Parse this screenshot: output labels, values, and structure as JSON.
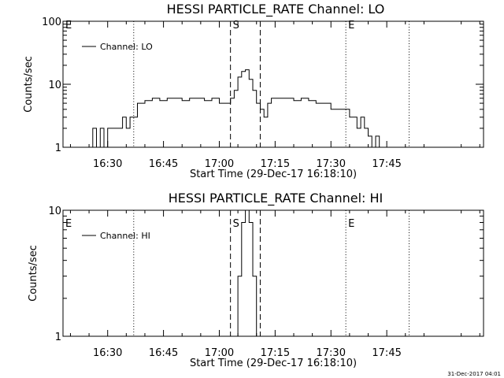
{
  "chart_data": [
    {
      "type": "line",
      "title": "HESSI PARTICLE_RATE Channel: LO",
      "xlabel": "Start Time (29-Dec-17 16:18:10)",
      "ylabel": "Counts/sec",
      "yscale": "log",
      "ylim": [
        1,
        100
      ],
      "ytick_labels": [
        "1",
        "10",
        "100"
      ],
      "xlim_minutes": [
        978,
        1091
      ],
      "xtick_labels": [
        "16:30",
        "16:45",
        "17:00",
        "17:15",
        "17:30",
        "17:45"
      ],
      "legend": {
        "placement": "top-left",
        "entries": [
          "Channel: LO"
        ]
      },
      "markers": [
        {
          "label": "E",
          "time": "16:18",
          "style": "dotted"
        },
        {
          "label": "",
          "time": "16:37",
          "style": "dotted"
        },
        {
          "label": "S",
          "time": "17:03",
          "style": "dashed"
        },
        {
          "label": "",
          "time": "17:11",
          "style": "dashed"
        },
        {
          "label": "E",
          "time": "17:34",
          "style": "dotted"
        },
        {
          "label": "",
          "time": "17:51",
          "style": "dotted"
        }
      ],
      "series": [
        {
          "name": "Channel: LO",
          "x": [
            "16:25",
            "16:26",
            "16:27",
            "16:28",
            "16:29",
            "16:30",
            "16:31",
            "16:32",
            "16:33",
            "16:34",
            "16:35",
            "16:36",
            "16:37",
            "16:38",
            "16:40",
            "16:42",
            "16:44",
            "16:46",
            "16:48",
            "16:50",
            "16:52",
            "16:54",
            "16:56",
            "16:58",
            "17:00",
            "17:02",
            "17:03",
            "17:04",
            "17:05",
            "17:06",
            "17:07",
            "17:08",
            "17:09",
            "17:10",
            "17:11",
            "17:12",
            "17:13",
            "17:14",
            "17:16",
            "17:18",
            "17:20",
            "17:22",
            "17:24",
            "17:26",
            "17:28",
            "17:30",
            "17:32",
            "17:34",
            "17:35",
            "17:36",
            "17:37",
            "17:38",
            "17:39",
            "17:40",
            "17:41",
            "17:42",
            "17:43",
            "17:44",
            "17:45",
            "17:46",
            "17:47",
            "17:48"
          ],
          "values": [
            1,
            2,
            1,
            2,
            1,
            2,
            2,
            2,
            2,
            3,
            2,
            3,
            3,
            5,
            5.5,
            6,
            5.5,
            6,
            6,
            5.5,
            6,
            6,
            5.5,
            6,
            5,
            5,
            6,
            8,
            13,
            16,
            17,
            12,
            8,
            5,
            4,
            3,
            5,
            6,
            6,
            6,
            5.5,
            6,
            5.5,
            5,
            5,
            4,
            4,
            4,
            3,
            3,
            2,
            3,
            2,
            1.5,
            1,
            1.5,
            1,
            1,
            1,
            1,
            1,
            1
          ]
        }
      ]
    },
    {
      "type": "line",
      "title": "HESSI PARTICLE_RATE Channel: HI",
      "xlabel": "Start Time (29-Dec-17 16:18:10)",
      "ylabel": "Counts/sec",
      "yscale": "log",
      "ylim": [
        1,
        10
      ],
      "ytick_labels": [
        "1",
        "10"
      ],
      "xlim_minutes": [
        978,
        1091
      ],
      "xtick_labels": [
        "16:30",
        "16:45",
        "17:00",
        "17:15",
        "17:30",
        "17:45"
      ],
      "legend": {
        "placement": "top-left",
        "entries": [
          "Channel: HI"
        ]
      },
      "markers": [
        {
          "label": "E",
          "time": "16:18",
          "style": "dotted"
        },
        {
          "label": "",
          "time": "16:37",
          "style": "dotted"
        },
        {
          "label": "S",
          "time": "17:03",
          "style": "dashed"
        },
        {
          "label": "",
          "time": "17:11",
          "style": "dashed"
        },
        {
          "label": "E",
          "time": "17:34",
          "style": "dotted"
        },
        {
          "label": "",
          "time": "17:51",
          "style": "dotted"
        }
      ],
      "series": [
        {
          "name": "Channel: HI",
          "x": [
            "17:04",
            "17:05",
            "17:06",
            "17:07",
            "17:08",
            "17:09",
            "17:10"
          ],
          "values": [
            1,
            3,
            8,
            10,
            8,
            3,
            1
          ]
        }
      ]
    }
  ],
  "footer": {
    "timestamp": "31-Dec-2017 04:01"
  }
}
